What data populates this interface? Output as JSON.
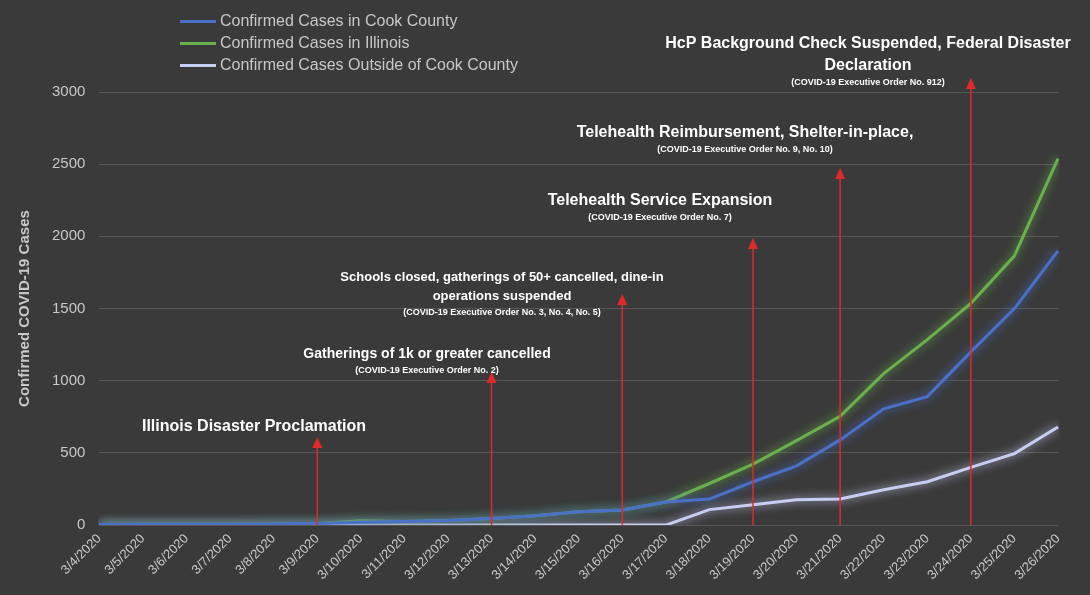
{
  "chart_data": {
    "type": "line",
    "y_label": "Confirmed COVID-19 Cases",
    "categories": [
      "3/4/2020",
      "3/5/2020",
      "3/6/2020",
      "3/7/2020",
      "3/8/2020",
      "3/9/2020",
      "3/10/2020",
      "3/11/2020",
      "3/12/2020",
      "3/13/2020",
      "3/14/2020",
      "3/15/2020",
      "3/16/2020",
      "3/17/2020",
      "3/18/2020",
      "3/19/2020",
      "3/20/2020",
      "3/21/2020",
      "3/22/2020",
      "3/23/2020",
      "3/24/2020",
      "3/25/2020",
      "3/26/2020"
    ],
    "series": [
      {
        "name": "Confirmed Cases  in Cook County",
        "color": "#4a70c8",
        "values": [
          4,
          5,
          5,
          6,
          7,
          11,
          19,
          25,
          32,
          46,
          64,
          93,
          105,
          160,
          180,
          300,
          410,
          590,
          805,
          890,
          1200,
          1500,
          1900
        ]
      },
      {
        "name": "Confirmed Cases in Illinois",
        "color": "#6ab04c",
        "values": [
          4,
          5,
          5,
          6,
          7,
          11,
          30,
          25,
          32,
          46,
          64,
          93,
          105,
          160,
          288,
          422,
          585,
          753,
          1049,
          1285,
          1535,
          1865,
          2538
        ]
      },
      {
        "name": "Confirmed Cases  Outside of Cook County",
        "color": "#c8cdf2",
        "values": [
          0,
          0,
          0,
          0,
          0,
          0,
          0,
          0,
          0,
          0,
          0,
          0,
          0,
          0,
          107,
          140,
          175,
          180,
          245,
          300,
          400,
          495,
          680
        ]
      }
    ],
    "ylim": [
      0,
      3000
    ],
    "yticks": [
      0,
      500,
      1000,
      1500,
      2000,
      2500,
      3000
    ],
    "grid": true,
    "legend": "upper left",
    "annotations": [
      {
        "text": [
          "Illinois Disaster Proclamation"
        ],
        "x": "3/9/2020"
      },
      {
        "text": [
          "Gatherings of 1k or greater cancelled"
        ],
        "note": "(COVID-19 Executive Order No. 2)",
        "x": "3/13/2020"
      },
      {
        "text": [
          "Schools closed, gatherings of 50+ cancelled, dine-in",
          "operations suspended"
        ],
        "note": "(COVID-19 Executive Order No. 3, No. 4, No. 5)",
        "x": "3/16/2020"
      },
      {
        "text": [
          "Telehealth Service Expansion"
        ],
        "note": "(COVID-19 Executive Order No. 7)",
        "x": "3/19/2020"
      },
      {
        "text": [
          "Telehealth Reimbursement, Shelter-in-place,"
        ],
        "note": "(COVID-19 Executive Order No. 9, No. 10)",
        "x": "3/21/2020"
      },
      {
        "text": [
          "HcP Background Check Suspended, Federal Disaster",
          "Declaration"
        ],
        "note": "(COVID-19 Executive Order No. 912)",
        "x": "3/24/2020"
      }
    ]
  }
}
